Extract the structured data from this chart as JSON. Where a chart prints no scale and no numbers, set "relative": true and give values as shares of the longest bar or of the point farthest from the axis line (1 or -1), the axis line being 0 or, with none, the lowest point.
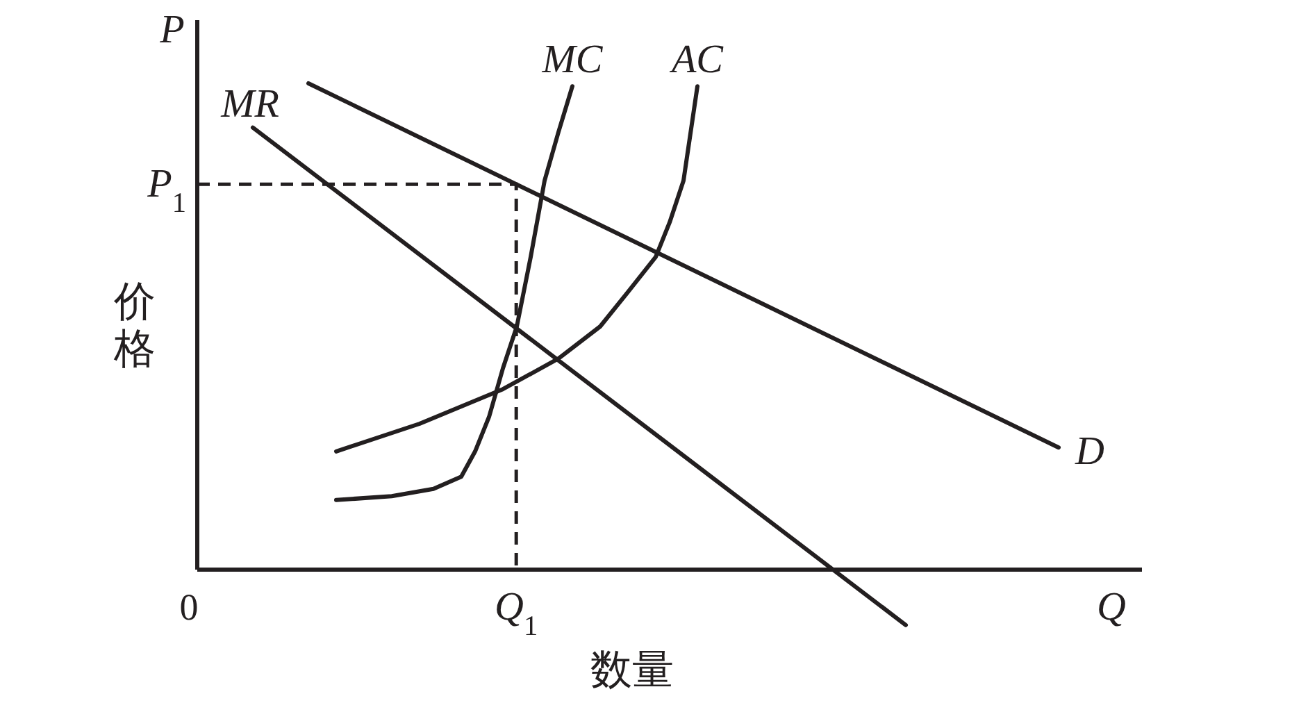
{
  "chart_data": {
    "type": "line",
    "relative": true,
    "xlabel": "数量",
    "ylabel": "价格",
    "annotations": [
      "P",
      "Q",
      "0",
      "Q$_{1}$",
      "P$_{1}$"
    ],
    "categories": [
      null,
      null,
      null,
      null,
      null,
      null,
      null,
      null,
      null,
      null,
      null,
      null,
      null,
      null,
      null,
      null,
      null,
      null,
      null,
      null,
      null,
      null,
      null,
      null,
      null,
      null,
      null,
      null,
      null,
      null,
      null,
      null,
      null,
      null,
      null,
      null,
      null,
      null,
      null,
      null,
      null,
      null,
      null,
      null,
      null,
      null,
      null,
      null,
      null,
      null,
      null,
      null,
      null,
      null,
      null,
      null,
      null,
      null,
      null,
      null,
      null,
      null,
      null,
      null,
      null,
      null,
      null,
      null,
      null
    ],
    "series": [
      {
        "name": "MC",
        "color": "#231f20",
        "values": [
          null,
          null,
          null,
          null,
          null,
          null,
          null,
          null,
          null,
          null,
          0.143,
          null,
          null,
          null,
          0.151,
          null,
          null,
          0.166,
          null,
          0.191,
          0.243,
          0.314,
          0.414,
          0.5,
          0.643,
          0.8,
          0.9,
          0.994,
          null,
          null,
          null,
          null,
          null,
          null,
          null,
          null,
          null,
          null,
          null,
          null,
          null,
          null,
          null,
          null,
          null,
          null,
          null,
          null,
          null,
          null,
          null,
          null,
          null,
          null,
          null,
          null,
          null,
          null,
          null,
          null,
          null,
          null,
          null,
          null,
          null,
          null,
          null,
          null,
          null
        ]
      },
      {
        "name": "AC",
        "color": "#231f20",
        "values": [
          null,
          null,
          null,
          null,
          null,
          null,
          null,
          null,
          null,
          null,
          0.243,
          null,
          null,
          null,
          null,
          null,
          0.3,
          null,
          null,
          null,
          null,
          null,
          0.371,
          null,
          null,
          null,
          0.434,
          null,
          null,
          0.5,
          null,
          0.571,
          null,
          0.643,
          0.714,
          0.8,
          0.994,
          null,
          null,
          null,
          null,
          null,
          null,
          null,
          null,
          null,
          null,
          null,
          null,
          null,
          null,
          null,
          null,
          null,
          null,
          null,
          null,
          null,
          null,
          null,
          null,
          null,
          null,
          null,
          null,
          null,
          null,
          null,
          null
        ]
      },
      {
        "name": "MR",
        "color": "#231f20",
        "values": [
          null,
          null,
          null,
          null,
          0.909,
          null,
          null,
          null,
          null,
          null,
          null,
          null,
          null,
          null,
          null,
          null,
          null,
          null,
          null,
          null,
          null,
          null,
          null,
          null,
          null,
          null,
          null,
          null,
          null,
          null,
          null,
          null,
          null,
          null,
          null,
          null,
          null,
          null,
          null,
          null,
          null,
          null,
          null,
          null,
          null,
          null,
          null,
          null,
          null,
          null,
          null,
          -0.114,
          null,
          null,
          null,
          null,
          null,
          null,
          null,
          null,
          null,
          null,
          null,
          null,
          null,
          null,
          null,
          null,
          null
        ]
      },
      {
        "name": "D",
        "color": "#231f20",
        "values": [
          null,
          null,
          null,
          null,
          null,
          null,
          null,
          null,
          1.0,
          null,
          null,
          null,
          null,
          null,
          null,
          null,
          null,
          null,
          null,
          null,
          null,
          null,
          null,
          null,
          null,
          null,
          null,
          null,
          null,
          null,
          null,
          null,
          null,
          null,
          null,
          null,
          null,
          null,
          null,
          null,
          null,
          null,
          null,
          null,
          null,
          null,
          null,
          null,
          null,
          null,
          null,
          null,
          null,
          null,
          null,
          null,
          null,
          null,
          null,
          null,
          null,
          null,
          0.251,
          null,
          null,
          null,
          null,
          null,
          null
        ]
      }
    ]
  }
}
